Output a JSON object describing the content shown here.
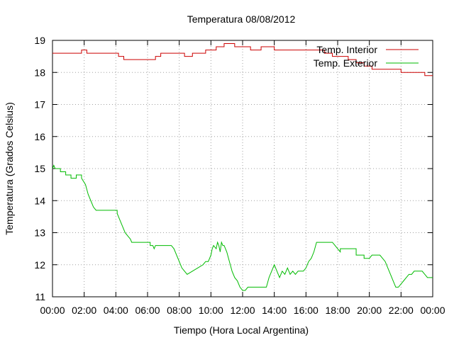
{
  "chart_data": {
    "type": "line",
    "title": "Temperatura 08/08/2012",
    "xlabel": "Tiempo (Hora Local Argentina)",
    "ylabel": "Temperatura (Grados Celsius)",
    "xlim": [
      "00:00",
      "24:00"
    ],
    "ylim": [
      11,
      19
    ],
    "x_tick_labels": [
      "00:00",
      "02:00",
      "04:00",
      "06:00",
      "08:00",
      "10:00",
      "12:00",
      "14:00",
      "16:00",
      "18:00",
      "20:00",
      "22:00",
      "00:00"
    ],
    "y_tick_labels": [
      "11",
      "12",
      "13",
      "14",
      "15",
      "16",
      "17",
      "18",
      "19"
    ],
    "grid": true,
    "legend_position": "top-right",
    "series": [
      {
        "name": "Temp. Interior",
        "color": "#cc0000",
        "x": [
          "00:00",
          "01:50",
          "01:50",
          "02:10",
          "02:10",
          "04:10",
          "04:10",
          "04:30",
          "04:30",
          "06:30",
          "06:30",
          "06:50",
          "06:50",
          "08:20",
          "08:20",
          "08:50",
          "08:50",
          "09:40",
          "09:40",
          "10:20",
          "10:20",
          "10:50",
          "10:50",
          "11:30",
          "11:30",
          "12:30",
          "12:30",
          "13:10",
          "13:10",
          "14:00",
          "14:00",
          "17:10",
          "17:10",
          "17:40",
          "17:40",
          "18:40",
          "18:40",
          "19:10",
          "19:10",
          "19:40",
          "19:40",
          "20:10",
          "20:10",
          "22:00",
          "22:00",
          "23:30",
          "23:30",
          "24:00"
        ],
        "values": [
          18.6,
          18.6,
          18.7,
          18.7,
          18.6,
          18.6,
          18.5,
          18.5,
          18.4,
          18.4,
          18.5,
          18.5,
          18.6,
          18.6,
          18.5,
          18.5,
          18.6,
          18.6,
          18.7,
          18.7,
          18.8,
          18.8,
          18.9,
          18.9,
          18.8,
          18.8,
          18.7,
          18.7,
          18.8,
          18.8,
          18.7,
          18.7,
          18.6,
          18.6,
          18.5,
          18.5,
          18.4,
          18.4,
          18.3,
          18.3,
          18.2,
          18.2,
          18.1,
          18.1,
          18.0,
          18.0,
          17.9,
          17.9
        ]
      },
      {
        "name": "Temp. Exterior",
        "color": "#00bb00",
        "x": [
          "00:00",
          "00:05",
          "00:10",
          "00:30",
          "00:30",
          "00:50",
          "00:50",
          "01:10",
          "01:10",
          "01:30",
          "01:30",
          "01:50",
          "01:50",
          "02:05",
          "02:15",
          "02:25",
          "02:35",
          "02:45",
          "03:00",
          "03:00",
          "04:05",
          "04:05",
          "04:15",
          "04:25",
          "04:35",
          "04:45",
          "04:55",
          "05:00",
          "06:10",
          "06:10",
          "06:20",
          "06:25",
          "06:30",
          "07:30",
          "07:40",
          "07:50",
          "08:00",
          "08:10",
          "08:20",
          "08:30",
          "08:50",
          "09:10",
          "09:30",
          "09:40",
          "09:50",
          "10:00",
          "10:05",
          "10:10",
          "10:20",
          "10:25",
          "10:30",
          "10:35",
          "10:40",
          "10:45",
          "10:50",
          "11:00",
          "11:10",
          "11:20",
          "11:30",
          "11:40",
          "11:50",
          "12:00",
          "12:10",
          "12:20",
          "12:30",
          "12:40",
          "12:40",
          "13:30",
          "13:40",
          "13:50",
          "14:00",
          "14:05",
          "14:10",
          "14:20",
          "14:30",
          "14:40",
          "14:50",
          "15:00",
          "15:10",
          "15:20",
          "15:30",
          "15:40",
          "15:50",
          "16:00",
          "16:10",
          "16:20",
          "16:30",
          "16:40",
          "16:40",
          "17:40",
          "17:50",
          "18:00",
          "18:10",
          "18:10",
          "19:10",
          "19:10",
          "19:40",
          "19:40",
          "20:00",
          "20:10",
          "20:10",
          "20:40",
          "20:50",
          "21:00",
          "21:10",
          "21:20",
          "21:30",
          "21:40",
          "21:50",
          "22:00",
          "22:10",
          "22:20",
          "22:30",
          "22:40",
          "22:50",
          "22:50",
          "23:20",
          "23:30",
          "23:40",
          "24:00"
        ],
        "values": [
          15.0,
          15.1,
          15.0,
          15.0,
          14.9,
          14.9,
          14.8,
          14.8,
          14.7,
          14.7,
          14.8,
          14.8,
          14.7,
          14.5,
          14.2,
          14.0,
          13.8,
          13.7,
          13.7,
          13.7,
          13.7,
          13.6,
          13.4,
          13.2,
          13.0,
          12.9,
          12.8,
          12.7,
          12.7,
          12.6,
          12.6,
          12.5,
          12.6,
          12.6,
          12.5,
          12.3,
          12.1,
          11.9,
          11.8,
          11.7,
          11.8,
          11.9,
          12.0,
          12.1,
          12.1,
          12.3,
          12.5,
          12.6,
          12.5,
          12.7,
          12.6,
          12.4,
          12.7,
          12.6,
          12.6,
          12.4,
          12.1,
          11.8,
          11.6,
          11.5,
          11.3,
          11.2,
          11.2,
          11.3,
          11.3,
          11.3,
          11.3,
          11.3,
          11.6,
          11.8,
          12.0,
          11.9,
          11.8,
          11.6,
          11.8,
          11.7,
          11.9,
          11.7,
          11.8,
          11.7,
          11.8,
          11.8,
          11.8,
          11.9,
          12.1,
          12.2,
          12.4,
          12.7,
          12.7,
          12.7,
          12.6,
          12.5,
          12.4,
          12.5,
          12.5,
          12.3,
          12.3,
          12.2,
          12.2,
          12.3,
          12.3,
          12.3,
          12.2,
          12.1,
          11.9,
          11.7,
          11.5,
          11.3,
          11.3,
          11.4,
          11.5,
          11.6,
          11.7,
          11.7,
          11.8,
          11.8,
          11.8,
          11.7,
          11.6,
          11.6
        ]
      }
    ]
  }
}
